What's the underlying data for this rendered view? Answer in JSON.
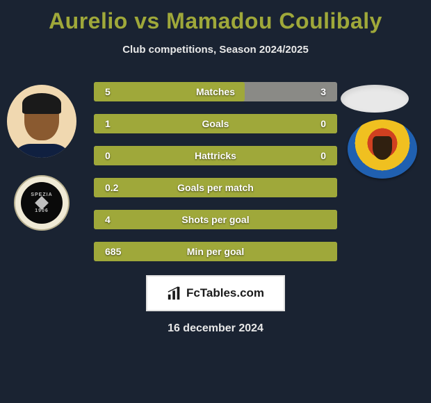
{
  "title": "Aurelio vs Mamadou Coulibaly",
  "subtitle": "Club competitions, Season 2024/2025",
  "colors": {
    "background": "#1a2332",
    "accent": "#9fa83a",
    "bar_empty": "#8a8a86",
    "text_light": "#e8e8e8"
  },
  "left_club": {
    "name": "Spezia",
    "top_text": "SPEZIA",
    "bottom_text": "1906"
  },
  "right_club": {
    "name": "Catanzaro"
  },
  "bars": [
    {
      "label": "Matches",
      "left": "5",
      "right": "3",
      "fill_pct": 62
    },
    {
      "label": "Goals",
      "left": "1",
      "right": "0",
      "fill_pct": 100
    },
    {
      "label": "Hattricks",
      "left": "0",
      "right": "0",
      "fill_pct": 100
    },
    {
      "label": "Goals per match",
      "left": "0.2",
      "right": "",
      "fill_pct": 100
    },
    {
      "label": "Shots per goal",
      "left": "4",
      "right": "",
      "fill_pct": 100
    },
    {
      "label": "Min per goal",
      "left": "685",
      "right": "",
      "fill_pct": 100
    }
  ],
  "brand": "FcTables.com",
  "date": "16 december 2024"
}
